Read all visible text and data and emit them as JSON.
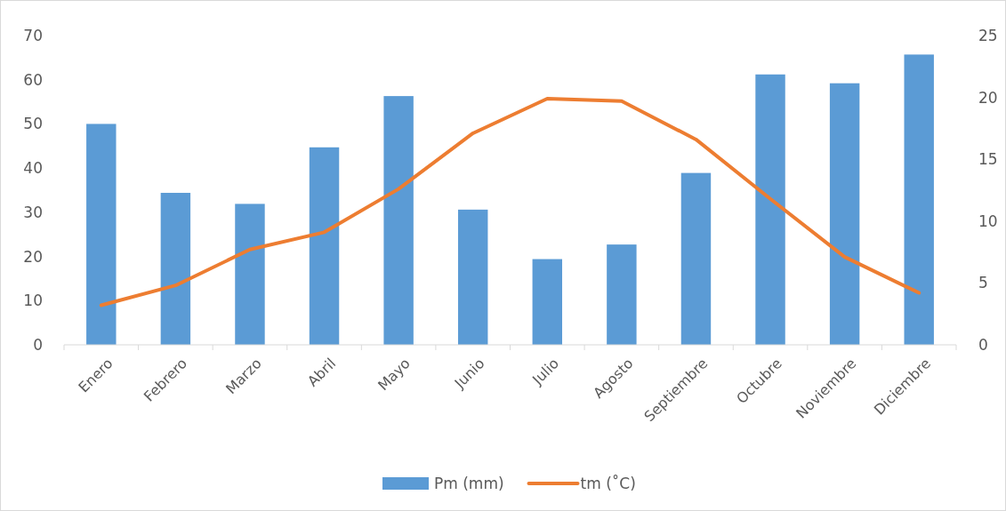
{
  "chart_data": {
    "type": "bar",
    "categories": [
      "Enero",
      "Febrero",
      "Marzo",
      "Abril",
      "Mayo",
      "Junio",
      "Julio",
      "Agosto",
      "Septiembre",
      "Octubre",
      "Noviembre",
      "Diciembre"
    ],
    "series": [
      {
        "name": "Pm (mm)",
        "color": "#5b9bd5",
        "values": [
          50.0,
          34.4,
          31.9,
          44.7,
          56.3,
          30.6,
          19.4,
          22.7,
          38.9,
          61.2,
          59.2,
          65.7
        ]
      },
      {
        "name": "tm (˚C)",
        "type": "line",
        "axis": "y2",
        "color": "#ed7d31",
        "values": [
          3.2,
          4.8,
          7.7,
          9.1,
          12.6,
          17.1,
          19.9,
          19.7,
          16.6,
          11.8,
          7.1,
          4.2
        ]
      }
    ],
    "ylim": [
      0,
      70
    ],
    "yticks": [
      0,
      10,
      20,
      30,
      40,
      50,
      60,
      70
    ],
    "y2lim": [
      0,
      25
    ],
    "y2ticks": [
      0,
      5,
      10,
      15,
      20,
      25
    ],
    "grid": false,
    "legend": "bottom",
    "marker": "none"
  }
}
